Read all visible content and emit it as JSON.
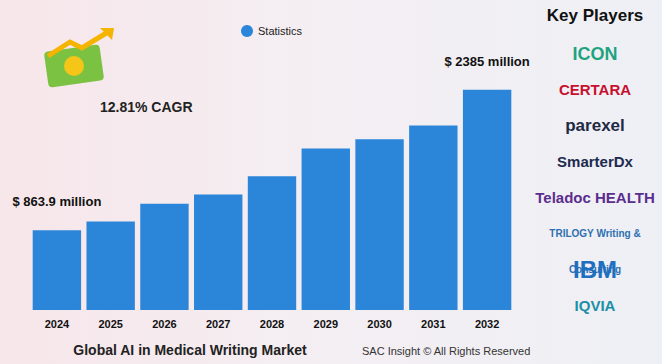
{
  "chart_data": {
    "type": "bar",
    "title": "Global AI in Medical Writing Market",
    "subtitle": "12.81% CAGR",
    "footer": "SAC Insight © All Rights Reserved",
    "categories": [
      "2024",
      "2025",
      "2026",
      "2027",
      "2028",
      "2029",
      "2030",
      "2031",
      "2032"
    ],
    "series": [
      {
        "name": "Statistics",
        "color": "#2b86da",
        "values": [
          863.9,
          960,
          1150,
          1250,
          1450,
          1750,
          1850,
          2000,
          2385
        ],
        "value_labels": [
          "$ 863.9 million",
          null,
          null,
          null,
          null,
          null,
          null,
          null,
          "$ 2385 million"
        ]
      }
    ],
    "data_labels": true,
    "ylim": [
      0,
      2600
    ],
    "tick_labels": "x",
    "grid": false,
    "legend": "top",
    "key_players": {
      "title": "Key Players",
      "items": [
        "ICON",
        "CERTARA",
        "parexel",
        "SmarterDx",
        "Teladoc HEALTH",
        "TRILOGY Writing & Consulting",
        "IBM",
        "IQVIA"
      ]
    }
  }
}
